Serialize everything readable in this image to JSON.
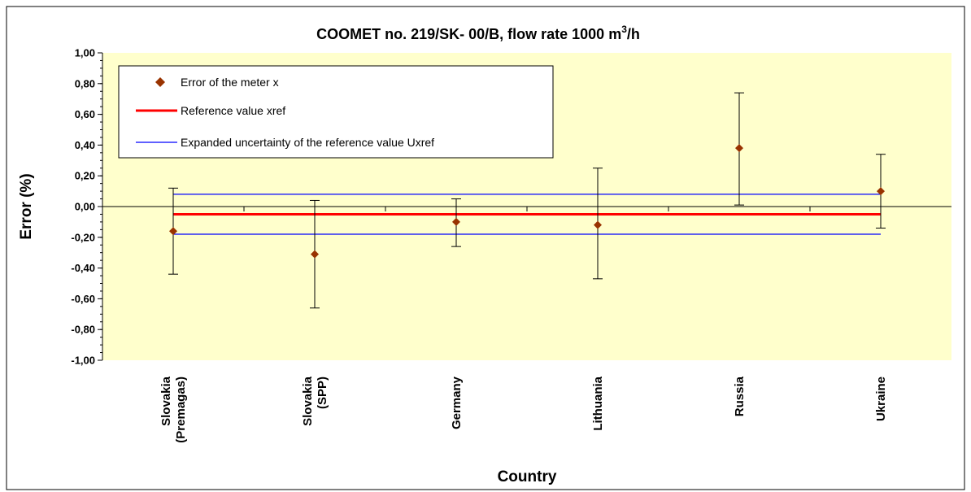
{
  "chart_data": {
    "type": "scatter",
    "title": "COOMET no. 219/SK- 00/B, flow rate 1000 m",
    "title_sup": "3",
    "title_suffix": "/h",
    "xlabel": "Country",
    "ylabel": "Error (%)",
    "ylim": [
      -1.0,
      1.0
    ],
    "yticks": [
      "1,00",
      "0,80",
      "0,60",
      "0,40",
      "0,20",
      "0,00",
      "-0,20",
      "-0,40",
      "-0,60",
      "-0,80",
      "-1,00"
    ],
    "ytick_values": [
      1.0,
      0.8,
      0.6,
      0.4,
      0.2,
      0.0,
      -0.2,
      -0.4,
      -0.6,
      -0.8,
      -1.0
    ],
    "grid": false,
    "legend_position": "top-left",
    "plot_background": "#FFFFCC",
    "categories": [
      [
        "Slovakia",
        "(Premagas)"
      ],
      [
        "Slovakia",
        "(SPP)"
      ],
      [
        "Germany"
      ],
      [
        "Lithuania"
      ],
      [
        "Russia"
      ],
      [
        "Ukraine"
      ]
    ],
    "series": [
      {
        "name": "Error of  the meter  x",
        "kind": "points",
        "color": "#993300",
        "values": [
          -0.16,
          -0.31,
          -0.1,
          -0.12,
          0.38,
          0.1
        ],
        "error_low": [
          -0.44,
          -0.66,
          -0.26,
          -0.47,
          0.01,
          -0.14
        ],
        "error_high": [
          0.12,
          0.04,
          0.05,
          0.25,
          0.74,
          0.34
        ]
      },
      {
        "name": "Reference value xref",
        "kind": "hline",
        "color": "#FF0000",
        "value": -0.05
      },
      {
        "name": "Expanded uncertainty of the reference value Uxref",
        "kind": "hband",
        "color": "#0000FF",
        "upper": 0.08,
        "lower": -0.18
      }
    ]
  }
}
